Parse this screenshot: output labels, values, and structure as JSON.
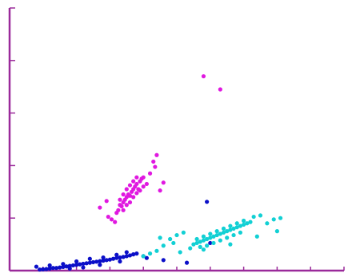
{
  "chart_data": {
    "type": "scatter",
    "title": "",
    "xlabel": "",
    "ylabel": "",
    "xlim": [
      0,
      10
    ],
    "ylim": [
      0,
      10
    ],
    "x_ticks": [
      0,
      1,
      2,
      3,
      4,
      5,
      6,
      7,
      8,
      9,
      10
    ],
    "y_ticks": [
      0,
      2,
      4,
      6,
      8,
      10
    ],
    "grid": false,
    "legend": "none",
    "axis_color": "#9a2a9a",
    "series": [
      {
        "color": "#0b0fc8",
        "points": [
          [
            0.9,
            0.04
          ],
          [
            1.0,
            0.05
          ],
          [
            1.1,
            0.06
          ],
          [
            1.2,
            0.08
          ],
          [
            1.3,
            0.1
          ],
          [
            1.4,
            0.1
          ],
          [
            1.5,
            0.12
          ],
          [
            1.6,
            0.14
          ],
          [
            1.7,
            0.16
          ],
          [
            1.8,
            0.18
          ],
          [
            1.9,
            0.2
          ],
          [
            2.0,
            0.22
          ],
          [
            2.1,
            0.24
          ],
          [
            2.2,
            0.26
          ],
          [
            2.3,
            0.28
          ],
          [
            2.4,
            0.3
          ],
          [
            2.5,
            0.32
          ],
          [
            2.6,
            0.34
          ],
          [
            2.7,
            0.36
          ],
          [
            2.8,
            0.38
          ],
          [
            2.9,
            0.4
          ],
          [
            3.0,
            0.42
          ],
          [
            3.1,
            0.45
          ],
          [
            3.2,
            0.48
          ],
          [
            3.3,
            0.5
          ],
          [
            3.4,
            0.52
          ],
          [
            3.5,
            0.55
          ],
          [
            3.6,
            0.58
          ],
          [
            3.7,
            0.62
          ],
          [
            3.8,
            0.65
          ],
          [
            1.6,
            0.25
          ],
          [
            2.0,
            0.35
          ],
          [
            2.4,
            0.45
          ],
          [
            2.8,
            0.5
          ],
          [
            3.2,
            0.6
          ],
          [
            3.5,
            0.7
          ],
          [
            3.3,
            0.35
          ],
          [
            2.7,
            0.22
          ],
          [
            2.2,
            0.12
          ],
          [
            1.8,
            0.08
          ],
          [
            4.0,
            0.55
          ],
          [
            4.1,
            0.48
          ],
          [
            0.8,
            0.15
          ],
          [
            1.2,
            0.2
          ],
          [
            4.6,
            0.4
          ],
          [
            5.3,
            0.3
          ],
          [
            5.9,
            2.62
          ],
          [
            6.0,
            1.05
          ]
        ]
      },
      {
        "color": "#e018e0",
        "points": [
          [
            3.2,
            2.2
          ],
          [
            3.25,
            2.3
          ],
          [
            3.3,
            2.5
          ],
          [
            3.35,
            2.45
          ],
          [
            3.4,
            2.6
          ],
          [
            3.45,
            2.7
          ],
          [
            3.5,
            2.8
          ],
          [
            3.55,
            2.9
          ],
          [
            3.6,
            2.85
          ],
          [
            3.65,
            3.0
          ],
          [
            3.7,
            3.1
          ],
          [
            3.75,
            3.2
          ],
          [
            3.8,
            3.3
          ],
          [
            3.85,
            3.1
          ],
          [
            3.9,
            3.4
          ],
          [
            3.95,
            3.5
          ],
          [
            4.0,
            3.55
          ],
          [
            3.4,
            2.3
          ],
          [
            3.5,
            2.5
          ],
          [
            3.6,
            2.6
          ],
          [
            3.7,
            2.8
          ],
          [
            3.8,
            2.95
          ],
          [
            3.9,
            3.05
          ],
          [
            4.0,
            3.2
          ],
          [
            3.3,
            2.7
          ],
          [
            3.4,
            2.9
          ],
          [
            3.5,
            3.1
          ],
          [
            3.6,
            3.25
          ],
          [
            3.7,
            3.4
          ],
          [
            3.8,
            3.55
          ],
          [
            2.95,
            2.05
          ],
          [
            3.05,
            1.95
          ],
          [
            3.15,
            1.85
          ],
          [
            4.1,
            3.3
          ],
          [
            4.2,
            3.7
          ],
          [
            4.3,
            4.15
          ],
          [
            4.4,
            4.4
          ],
          [
            4.5,
            3.05
          ],
          [
            4.6,
            3.35
          ],
          [
            2.7,
            2.4
          ],
          [
            2.9,
            2.65
          ],
          [
            5.8,
            7.4
          ],
          [
            6.3,
            6.9
          ],
          [
            4.35,
            3.95
          ]
        ]
      },
      {
        "color": "#12d0d4",
        "points": [
          [
            5.5,
            1.0
          ],
          [
            5.6,
            1.05
          ],
          [
            5.7,
            1.1
          ],
          [
            5.8,
            1.15
          ],
          [
            5.9,
            1.2
          ],
          [
            6.0,
            1.25
          ],
          [
            6.1,
            1.3
          ],
          [
            6.2,
            1.35
          ],
          [
            6.3,
            1.4
          ],
          [
            6.4,
            1.45
          ],
          [
            6.5,
            1.5
          ],
          [
            6.6,
            1.55
          ],
          [
            6.7,
            1.6
          ],
          [
            6.8,
            1.65
          ],
          [
            6.9,
            1.7
          ],
          [
            7.0,
            1.75
          ],
          [
            7.1,
            1.8
          ],
          [
            7.2,
            1.85
          ],
          [
            5.6,
            1.2
          ],
          [
            5.8,
            1.3
          ],
          [
            6.0,
            1.4
          ],
          [
            6.2,
            1.5
          ],
          [
            6.4,
            1.6
          ],
          [
            6.6,
            1.7
          ],
          [
            6.8,
            1.8
          ],
          [
            7.0,
            1.9
          ],
          [
            5.7,
            0.9
          ],
          [
            5.9,
            0.95
          ],
          [
            6.1,
            1.05
          ],
          [
            6.3,
            1.15
          ],
          [
            6.5,
            1.25
          ],
          [
            6.7,
            1.35
          ],
          [
            6.9,
            1.45
          ],
          [
            7.3,
            2.05
          ],
          [
            7.5,
            2.1
          ],
          [
            7.7,
            1.8
          ],
          [
            7.9,
            1.95
          ],
          [
            8.1,
            2.0
          ],
          [
            4.9,
            1.05
          ],
          [
            4.6,
            0.95
          ],
          [
            4.4,
            0.75
          ],
          [
            4.2,
            0.65
          ],
          [
            4.0,
            0.55
          ],
          [
            5.2,
            1.45
          ],
          [
            5.0,
            1.35
          ],
          [
            5.4,
            0.85
          ],
          [
            5.8,
            0.8
          ],
          [
            6.6,
            1.0
          ],
          [
            7.4,
            1.3
          ],
          [
            8.0,
            1.5
          ],
          [
            4.8,
            1.2
          ],
          [
            5.1,
            0.7
          ],
          [
            4.5,
            1.25
          ]
        ]
      }
    ]
  }
}
